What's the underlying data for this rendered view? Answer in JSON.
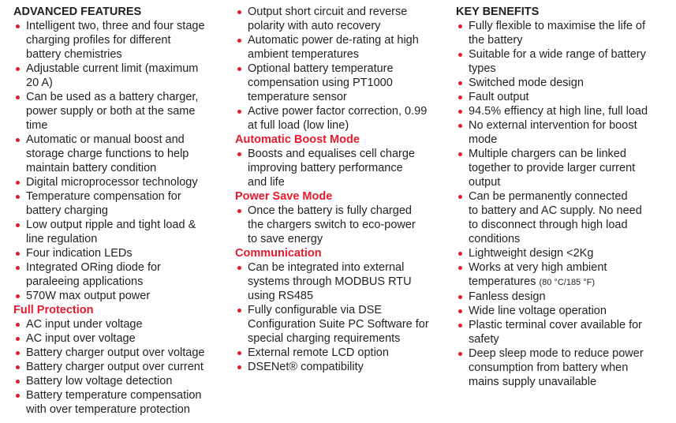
{
  "colors": {
    "heading_red": "#e31b2d",
    "bullet": "#e31b2d",
    "text": "#231f20"
  },
  "col1": {
    "heading": "ADVANCED FEATURES",
    "items": [
      "Intelligent two, three and four stage\ncharging profiles for different\nbattery chemistries",
      "Adjustable current limit (maximum\n20 A)",
      "Can be used as a battery charger,\npower supply or both at the same\ntime",
      "Automatic or manual boost and\nstorage charge functions to help\nmaintain battery condition",
      "Digital microprocessor technology",
      "Temperature compensation for\nbattery charging",
      "Low output ripple and tight load &\nline regulation",
      "Four indication LEDs",
      "Integrated ORing diode for\nparaleeing applications",
      "570W max output power"
    ],
    "heading2": "Full Protection",
    "items2": [
      "AC input under voltage",
      "AC input over voltage",
      "Battery charger output over voltage",
      "Battery charger output over current",
      "Battery low voltage detection",
      "Battery temperature compensation\nwith over temperature protection"
    ]
  },
  "col2": {
    "items": [
      "Output short circuit and reverse\npolarity with auto recovery",
      "Automatic power de-rating at high\nambient temperatures",
      "Optional battery temperature\ncompensation using PT1000\ntemperature sensor",
      "Active power factor correction, 0.99\nat full load (low line)"
    ],
    "heading2": "Automatic Boost Mode",
    "items2": [
      "Boosts and equalises cell charge\nimproving battery performance\nand life"
    ],
    "heading3": "Power Save Mode",
    "items3": [
      "Once the battery is fully charged\nthe chargers switch to eco-power\nto save energy"
    ],
    "heading4": "Communication",
    "items4": [
      "Can be integrated into external\nsystems through MODBUS RTU\nusing RS485",
      "Fully configurable via DSE\nConfiguration Suite PC Software for\nspecial charging requirements",
      "External remote LCD option",
      "DSENet® compatibility"
    ]
  },
  "col3": {
    "heading": "KEY BENEFITS",
    "items": [
      "Fully flexible to maximise the life of\nthe battery",
      "Suitable for a wide range of battery\ntypes",
      "Switched mode design",
      "Fault output",
      "94.5% effiency at high line, full load",
      "No external intervention for boost\nmode",
      "Multiple chargers can be linked\ntogether to provide larger current\noutput",
      "Can be permanently connected\nto battery and AC supply. No need\nto disconnect through high load\nconditions",
      "Lightweight design <2Kg"
    ],
    "temp_item": "Works at very high ambient\ntemperatures ",
    "temp_note": "(80 °C/185 °F)",
    "items2": [
      "Fanless design",
      "Wide line voltage operation",
      "Plastic terminal cover available for\nsafety",
      "Deep sleep mode to reduce power\nconsumption from battery when\nmains supply unavailable"
    ]
  }
}
